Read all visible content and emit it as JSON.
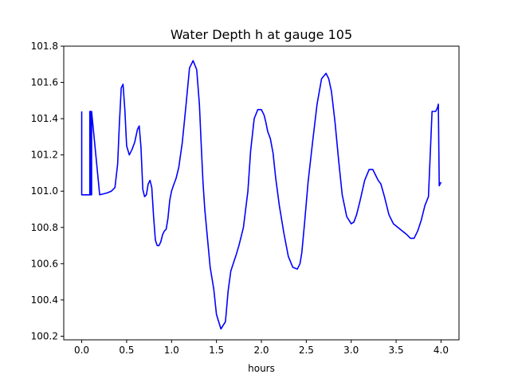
{
  "chart_data": {
    "type": "line",
    "title": "Water Depth h at gauge 105",
    "xlabel": "hours",
    "ylabel": "",
    "xlim": [
      -0.2,
      4.2
    ],
    "ylim": [
      100.18,
      101.8
    ],
    "x_ticks": [
      "0.0",
      "0.5",
      "1.0",
      "1.5",
      "2.0",
      "2.5",
      "3.0",
      "3.5",
      "4.0"
    ],
    "y_ticks": [
      "100.2",
      "100.4",
      "100.6",
      "100.8",
      "101.0",
      "101.2",
      "101.4",
      "101.6",
      "101.8"
    ],
    "grid": false,
    "legend": "none",
    "series": [
      {
        "color": "#0000ff",
        "x": [
          0.0,
          0.0,
          0.0,
          0.09,
          0.09,
          0.1,
          0.1,
          0.11,
          0.11,
          0.2,
          0.28,
          0.33,
          0.37,
          0.4,
          0.42,
          0.44,
          0.46,
          0.48,
          0.5,
          0.53,
          0.56,
          0.59,
          0.62,
          0.64,
          0.66,
          0.68,
          0.7,
          0.72,
          0.74,
          0.76,
          0.78,
          0.8,
          0.82,
          0.84,
          0.86,
          0.88,
          0.9,
          0.92,
          0.94,
          0.96,
          0.98,
          1.0,
          1.02,
          1.05,
          1.08,
          1.12,
          1.16,
          1.2,
          1.24,
          1.28,
          1.31,
          1.33,
          1.35,
          1.37,
          1.4,
          1.43,
          1.47,
          1.5,
          1.55,
          1.6,
          1.63,
          1.66,
          1.68,
          1.7,
          1.72,
          1.75,
          1.8,
          1.85,
          1.88,
          1.92,
          1.96,
          2.0,
          2.03,
          2.05,
          2.07,
          2.1,
          2.13,
          2.16,
          2.2,
          2.25,
          2.3,
          2.35,
          2.4,
          2.43,
          2.45,
          2.48,
          2.52,
          2.57,
          2.62,
          2.67,
          2.72,
          2.75,
          2.78,
          2.82,
          2.86,
          2.9,
          2.95,
          3.0,
          3.03,
          3.06,
          3.1,
          3.15,
          3.2,
          3.24,
          3.27,
          3.3,
          3.33,
          3.37,
          3.42,
          3.47,
          3.52,
          3.57,
          3.62,
          3.66,
          3.7,
          3.74,
          3.78,
          3.82,
          3.86,
          3.9,
          3.94,
          3.96,
          3.96,
          3.97,
          3.97,
          3.98,
          3.98,
          3.99,
          3.99,
          4.0
        ],
        "y": [
          101.44,
          101.44,
          100.98,
          100.98,
          101.44,
          101.44,
          100.98,
          100.98,
          101.44,
          100.98,
          100.99,
          101.0,
          101.02,
          101.15,
          101.38,
          101.57,
          101.59,
          101.45,
          101.25,
          101.2,
          101.23,
          101.27,
          101.34,
          101.36,
          101.24,
          101.01,
          100.97,
          100.98,
          101.04,
          101.06,
          101.02,
          100.86,
          100.73,
          100.7,
          100.7,
          100.72,
          100.76,
          100.78,
          100.79,
          100.85,
          100.95,
          101.0,
          101.03,
          101.07,
          101.13,
          101.27,
          101.47,
          101.68,
          101.72,
          101.67,
          101.48,
          101.26,
          101.05,
          100.9,
          100.74,
          100.58,
          100.46,
          100.32,
          100.24,
          100.28,
          100.45,
          100.56,
          100.59,
          100.62,
          100.65,
          100.7,
          100.8,
          101.0,
          101.22,
          101.4,
          101.45,
          101.45,
          101.42,
          101.38,
          101.33,
          101.29,
          101.21,
          101.07,
          100.92,
          100.77,
          100.64,
          100.58,
          100.57,
          100.6,
          100.66,
          100.82,
          101.05,
          101.27,
          101.48,
          101.62,
          101.65,
          101.62,
          101.55,
          101.38,
          101.17,
          100.98,
          100.86,
          100.82,
          100.83,
          100.87,
          100.95,
          101.06,
          101.12,
          101.12,
          101.09,
          101.06,
          101.04,
          100.97,
          100.87,
          100.82,
          100.8,
          100.78,
          100.76,
          100.74,
          100.74,
          100.78,
          100.84,
          100.92,
          100.97,
          101.44,
          101.44,
          101.46,
          101.46,
          101.48,
          101.48,
          101.03,
          101.03,
          101.04,
          101.04,
          101.05
        ]
      }
    ]
  }
}
